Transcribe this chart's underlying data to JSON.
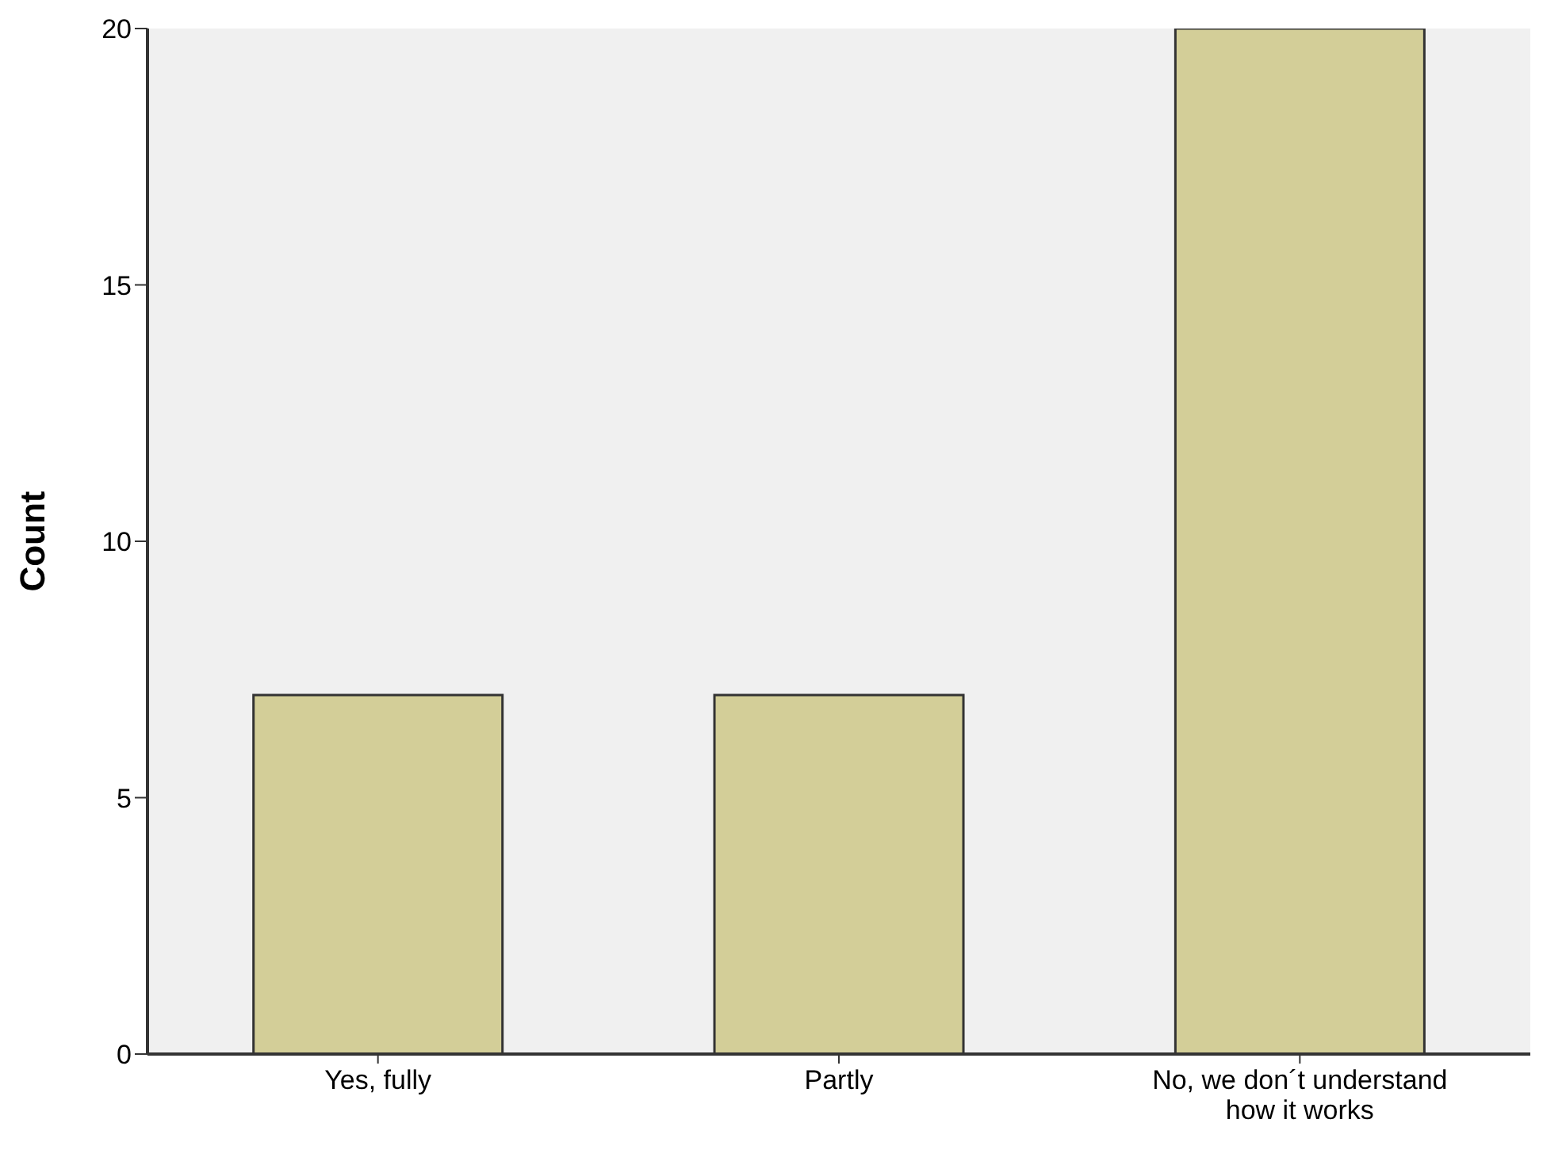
{
  "chart_data": {
    "type": "bar",
    "ylabel": "Count",
    "categories": [
      "Yes, fully",
      "Partly",
      "No, we don´t understand how it works"
    ],
    "values": [
      7,
      7,
      20
    ],
    "color": "#d3ce98",
    "ylim": [
      0,
      20
    ],
    "yticks": [
      0,
      5,
      10,
      15,
      20
    ]
  }
}
